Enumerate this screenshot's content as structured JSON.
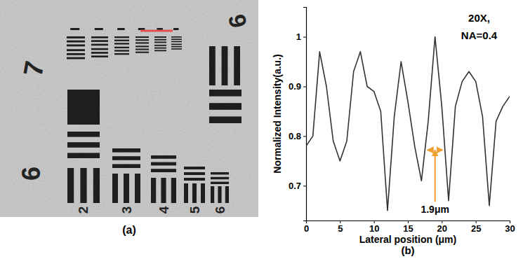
{
  "resolution_target": {
    "panel_label": "(a)",
    "group_labels": [
      "7",
      "6",
      "6"
    ],
    "element_labels": [
      "2",
      "3",
      "4",
      "5",
      "6"
    ]
  },
  "chart_data": {
    "type": "line",
    "panel_label": "(b)",
    "x_label": "Lateral position (μm)",
    "y_label": "Normalized Intensity(a.u.)",
    "x": [
      0,
      1,
      2,
      3,
      4,
      5,
      6,
      7,
      8,
      9,
      10,
      11,
      12,
      13,
      14,
      15,
      16,
      17,
      18,
      19,
      20,
      21,
      22,
      23,
      24,
      25,
      26,
      27,
      28,
      29,
      30
    ],
    "values": [
      0.78,
      0.8,
      0.97,
      0.9,
      0.79,
      0.75,
      0.79,
      0.93,
      0.97,
      0.9,
      0.89,
      0.85,
      0.65,
      0.84,
      0.95,
      0.87,
      0.78,
      0.71,
      0.83,
      1.0,
      0.86,
      0.67,
      0.86,
      0.91,
      0.93,
      0.91,
      0.84,
      0.66,
      0.83,
      0.86,
      0.88
    ],
    "color": "#333333",
    "xlim": [
      0,
      30
    ],
    "xticks": [
      0,
      5,
      10,
      15,
      20,
      25,
      30
    ],
    "ylim": [
      0.63,
      1.06
    ],
    "yticks": [
      0.7,
      0.8,
      0.9,
      1
    ],
    "annotations": [
      {
        "text": "20X,",
        "x": 25.5,
        "y": 1.03
      },
      {
        "text": "NA=0.4",
        "x": 25.5,
        "y": 0.995
      }
    ],
    "arrow_annotation": {
      "text": "1.9μm",
      "x": 19,
      "y": 0.645,
      "color": "#f0a030"
    }
  }
}
